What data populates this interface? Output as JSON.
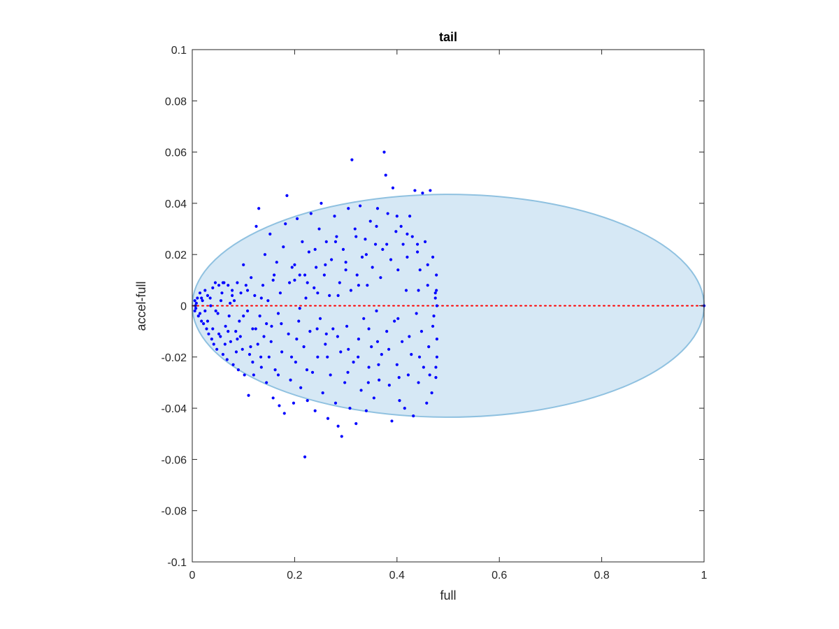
{
  "chart_data": {
    "type": "scatter",
    "title": "tail",
    "xlabel": "full",
    "ylabel": "accel-full",
    "xlim": [
      0,
      1
    ],
    "ylim": [
      -0.1,
      0.1
    ],
    "xticks": [
      0,
      0.2,
      0.4,
      0.6,
      0.8,
      1
    ],
    "xtick_labels": [
      "0",
      "0.2",
      "0.4",
      "0.6",
      "0.8",
      "1"
    ],
    "yticks": [
      -0.1,
      -0.08,
      -0.06,
      -0.04,
      -0.02,
      0,
      0.02,
      0.04,
      0.06,
      0.08,
      0.1
    ],
    "ytick_labels": [
      "-0.1",
      "-0.08",
      "-0.06",
      "-0.04",
      "-0.02",
      "0",
      "0.02",
      "0.04",
      "0.06",
      "0.08",
      "0.1"
    ],
    "grid": false,
    "ellipse": {
      "cx": 0.5,
      "cy": 0,
      "rx": 0.5,
      "ry": 0.0435,
      "fill": "#d6e8f5",
      "stroke": "#8fc1e0"
    },
    "reference_line": {
      "y": 0,
      "color": "#ff0000",
      "style": "dotted"
    },
    "marker_color": "#0000ff",
    "points": [
      [
        0.005,
        0.002
      ],
      [
        0.006,
        0.0
      ],
      [
        0.007,
        -0.001
      ],
      [
        0.008,
        0.001
      ],
      [
        0.005,
        -0.002
      ],
      [
        0.01,
        0.003
      ],
      [
        0.012,
        -0.004
      ],
      [
        0.015,
        0.005
      ],
      [
        0.018,
        -0.006
      ],
      [
        0.02,
        0.002
      ],
      [
        0.022,
        -0.007
      ],
      [
        0.025,
        0.006
      ],
      [
        0.028,
        -0.009
      ],
      [
        0.03,
        0.004
      ],
      [
        0.032,
        -0.011
      ],
      [
        0.035,
        0.003
      ],
      [
        0.038,
        -0.013
      ],
      [
        0.04,
        0.007
      ],
      [
        0.042,
        -0.015
      ],
      [
        0.045,
        0.009
      ],
      [
        0.048,
        -0.017
      ],
      [
        0.05,
        -0.003
      ],
      [
        0.052,
        0.008
      ],
      [
        0.055,
        -0.012
      ],
      [
        0.058,
        0.005
      ],
      [
        0.06,
        -0.019
      ],
      [
        0.062,
        0.009
      ],
      [
        0.065,
        -0.008
      ],
      [
        0.068,
        -0.021
      ],
      [
        0.07,
        0.008
      ],
      [
        0.072,
        -0.004
      ],
      [
        0.075,
        -0.014
      ],
      [
        0.078,
        0.006
      ],
      [
        0.08,
        -0.023
      ],
      [
        0.082,
        0.002
      ],
      [
        0.085,
        -0.01
      ],
      [
        0.088,
        0.009
      ],
      [
        0.09,
        -0.025
      ],
      [
        0.092,
        -0.006
      ],
      [
        0.095,
        0.005
      ],
      [
        0.098,
        -0.017
      ],
      [
        0.1,
        0.016
      ],
      [
        0.102,
        -0.027
      ],
      [
        0.105,
        0.008
      ],
      [
        0.108,
        -0.002
      ],
      [
        0.11,
        -0.035
      ],
      [
        0.112,
        -0.019
      ],
      [
        0.115,
        0.011
      ],
      [
        0.118,
        -0.009
      ],
      [
        0.12,
        -0.027
      ],
      [
        0.122,
        0.004
      ],
      [
        0.125,
        0.031
      ],
      [
        0.128,
        -0.015
      ],
      [
        0.13,
        0.038
      ],
      [
        0.132,
        -0.004
      ],
      [
        0.135,
        -0.024
      ],
      [
        0.138,
        0.008
      ],
      [
        0.14,
        -0.012
      ],
      [
        0.142,
        0.02
      ],
      [
        0.145,
        -0.03
      ],
      [
        0.148,
        0.002
      ],
      [
        0.15,
        -0.02
      ],
      [
        0.152,
        0.028
      ],
      [
        0.155,
        -0.008
      ],
      [
        0.158,
        -0.036
      ],
      [
        0.16,
        0.012
      ],
      [
        0.162,
        -0.025
      ],
      [
        0.165,
        0.017
      ],
      [
        0.168,
        -0.003
      ],
      [
        0.17,
        -0.039
      ],
      [
        0.172,
        0.005
      ],
      [
        0.175,
        -0.018
      ],
      [
        0.178,
        0.023
      ],
      [
        0.18,
        -0.042
      ],
      [
        0.182,
        0.032
      ],
      [
        0.185,
        0.043
      ],
      [
        0.188,
        -0.011
      ],
      [
        0.19,
        0.009
      ],
      [
        0.192,
        -0.029
      ],
      [
        0.195,
        0.015
      ],
      [
        0.198,
        -0.038
      ],
      [
        0.2,
        0.01
      ],
      [
        0.202,
        -0.022
      ],
      [
        0.205,
        0.034
      ],
      [
        0.208,
        -0.006
      ],
      [
        0.21,
        0.012
      ],
      [
        0.212,
        -0.032
      ],
      [
        0.215,
        0.025
      ],
      [
        0.218,
        -0.016
      ],
      [
        0.22,
        -0.059
      ],
      [
        0.222,
        0.003
      ],
      [
        0.225,
        -0.037
      ],
      [
        0.228,
        0.021
      ],
      [
        0.23,
        -0.01
      ],
      [
        0.232,
        0.036
      ],
      [
        0.235,
        -0.026
      ],
      [
        0.238,
        0.007
      ],
      [
        0.24,
        -0.041
      ],
      [
        0.242,
        0.015
      ],
      [
        0.245,
        -0.02
      ],
      [
        0.248,
        0.03
      ],
      [
        0.25,
        -0.005
      ],
      [
        0.252,
        0.04
      ],
      [
        0.255,
        -0.034
      ],
      [
        0.258,
        0.012
      ],
      [
        0.26,
        -0.015
      ],
      [
        0.262,
        0.025
      ],
      [
        0.265,
        -0.044
      ],
      [
        0.268,
        0.004
      ],
      [
        0.27,
        -0.027
      ],
      [
        0.272,
        0.018
      ],
      [
        0.275,
        -0.009
      ],
      [
        0.278,
        0.035
      ],
      [
        0.28,
        -0.038
      ],
      [
        0.282,
        0.027
      ],
      [
        0.285,
        -0.047
      ],
      [
        0.288,
        0.009
      ],
      [
        0.29,
        -0.018
      ],
      [
        0.292,
        -0.051
      ],
      [
        0.295,
        0.022
      ],
      [
        0.298,
        -0.03
      ],
      [
        0.3,
        0.014
      ],
      [
        0.302,
        -0.008
      ],
      [
        0.305,
        0.038
      ],
      [
        0.308,
        -0.04
      ],
      [
        0.31,
        0.006
      ],
      [
        0.312,
        0.057
      ],
      [
        0.315,
        -0.022
      ],
      [
        0.318,
        0.03
      ],
      [
        0.32,
        -0.046
      ],
      [
        0.322,
        0.012
      ],
      [
        0.325,
        -0.013
      ],
      [
        0.328,
        0.039
      ],
      [
        0.33,
        -0.033
      ],
      [
        0.332,
        0.019
      ],
      [
        0.335,
        -0.005
      ],
      [
        0.338,
        0.026
      ],
      [
        0.34,
        -0.041
      ],
      [
        0.342,
        0.008
      ],
      [
        0.345,
        -0.024
      ],
      [
        0.348,
        0.033
      ],
      [
        0.35,
        -0.016
      ],
      [
        0.352,
        0.015
      ],
      [
        0.355,
        -0.036
      ],
      [
        0.358,
        0.024
      ],
      [
        0.36,
        -0.002
      ],
      [
        0.362,
        0.038
      ],
      [
        0.365,
        -0.029
      ],
      [
        0.368,
        0.011
      ],
      [
        0.37,
        -0.019
      ],
      [
        0.372,
        0.022
      ],
      [
        0.375,
        0.06
      ],
      [
        0.378,
        0.051
      ],
      [
        0.38,
        -0.01
      ],
      [
        0.382,
        0.036
      ],
      [
        0.385,
        -0.031
      ],
      [
        0.388,
        0.018
      ],
      [
        0.39,
        -0.045
      ],
      [
        0.392,
        0.046
      ],
      [
        0.395,
        -0.006
      ],
      [
        0.398,
        0.029
      ],
      [
        0.4,
        -0.023
      ],
      [
        0.402,
        0.014
      ],
      [
        0.405,
        -0.037
      ],
      [
        0.408,
        0.031
      ],
      [
        0.41,
        -0.014
      ],
      [
        0.412,
        0.024
      ],
      [
        0.415,
        -0.04
      ],
      [
        0.418,
        0.006
      ],
      [
        0.42,
        0.019
      ],
      [
        0.422,
        -0.027
      ],
      [
        0.425,
        0.035
      ],
      [
        0.428,
        -0.019
      ],
      [
        0.43,
        0.027
      ],
      [
        0.432,
        -0.043
      ],
      [
        0.435,
        0.045
      ],
      [
        0.438,
        -0.003
      ],
      [
        0.44,
        0.021
      ],
      [
        0.442,
        -0.03
      ],
      [
        0.445,
        0.014
      ],
      [
        0.448,
        -0.01
      ],
      [
        0.45,
        0.044
      ],
      [
        0.452,
        -0.024
      ],
      [
        0.455,
        0.025
      ],
      [
        0.458,
        -0.038
      ],
      [
        0.46,
        0.008
      ],
      [
        0.462,
        -0.016
      ],
      [
        0.465,
        0.045
      ],
      [
        0.468,
        -0.034
      ],
      [
        0.47,
        0.019
      ],
      [
        0.472,
        -0.004
      ],
      [
        0.475,
        0.005
      ],
      [
        0.476,
        -0.028
      ],
      [
        0.477,
        0.012
      ],
      [
        0.478,
        -0.02
      ],
      [
        0.478,
        0.0
      ],
      [
        0.478,
        -0.013
      ],
      [
        0.477,
        0.006
      ],
      [
        0.476,
        -0.024
      ],
      [
        0.475,
        0.003
      ],
      [
        0.06,
        0.009
      ],
      [
        0.078,
        0.004
      ],
      [
        0.088,
        -0.013
      ],
      [
        0.108,
        0.006
      ],
      [
        0.118,
        -0.022
      ],
      [
        0.135,
        0.003
      ],
      [
        0.145,
        -0.007
      ],
      [
        0.158,
        0.01
      ],
      [
        0.168,
        -0.027
      ],
      [
        0.21,
        -0.001
      ],
      [
        0.225,
        0.009
      ],
      [
        0.245,
        0.005
      ],
      [
        0.262,
        -0.011
      ],
      [
        0.285,
        0.004
      ],
      [
        0.305,
        -0.017
      ],
      [
        0.325,
        0.008
      ],
      [
        0.345,
        -0.009
      ],
      [
        0.362,
        -0.014
      ],
      [
        0.402,
        -0.005
      ],
      [
        0.442,
        0.006
      ],
      [
        0.015,
        -0.003
      ],
      [
        0.018,
        0.003
      ],
      [
        0.025,
        -0.002
      ],
      [
        0.03,
        -0.006
      ],
      [
        0.036,
        0.0
      ],
      [
        0.04,
        -0.009
      ],
      [
        0.046,
        -0.002
      ],
      [
        0.052,
        -0.011
      ],
      [
        0.056,
        0.002
      ],
      [
        0.064,
        -0.015
      ],
      [
        0.07,
        -0.01
      ],
      [
        0.074,
        0.001
      ],
      [
        0.086,
        -0.018
      ],
      [
        0.094,
        -0.012
      ],
      [
        0.1,
        -0.004
      ],
      [
        0.114,
        -0.016
      ],
      [
        0.124,
        -0.009
      ],
      [
        0.134,
        -0.02
      ],
      [
        0.154,
        -0.014
      ],
      [
        0.174,
        -0.007
      ],
      [
        0.194,
        -0.02
      ],
      [
        0.204,
        -0.013
      ],
      [
        0.224,
        -0.025
      ],
      [
        0.244,
        -0.009
      ],
      [
        0.264,
        -0.02
      ],
      [
        0.284,
        -0.012
      ],
      [
        0.304,
        -0.026
      ],
      [
        0.324,
        -0.02
      ],
      [
        0.344,
        -0.03
      ],
      [
        0.364,
        -0.023
      ],
      [
        0.384,
        -0.017
      ],
      [
        0.404,
        -0.028
      ],
      [
        0.424,
        -0.012
      ],
      [
        0.444,
        -0.02
      ],
      [
        0.464,
        -0.027
      ],
      [
        0.47,
        -0.008
      ],
      [
        0.46,
        0.016
      ],
      [
        0.44,
        0.024
      ],
      [
        0.42,
        0.028
      ],
      [
        0.4,
        0.035
      ],
      [
        0.38,
        0.024
      ],
      [
        0.36,
        0.031
      ],
      [
        0.34,
        0.02
      ],
      [
        0.32,
        0.027
      ],
      [
        0.3,
        0.017
      ],
      [
        0.28,
        0.025
      ],
      [
        0.26,
        0.016
      ],
      [
        0.24,
        0.022
      ],
      [
        0.22,
        0.012
      ],
      [
        0.2,
        0.016
      ],
      [
        1.0,
        0.0
      ]
    ]
  }
}
